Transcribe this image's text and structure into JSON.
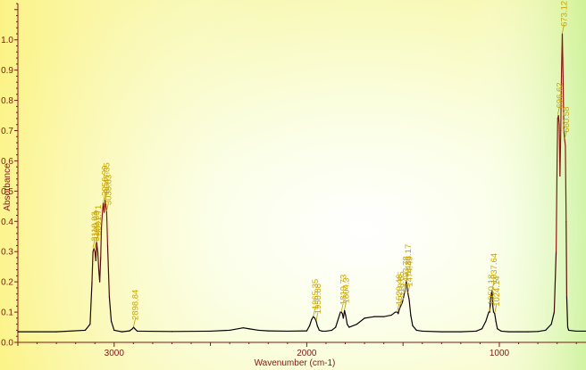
{
  "chart_data": {
    "type": "line",
    "title": "",
    "xlabel": "Wavenumber (cm-1)",
    "ylabel": "Absorbance",
    "xlim": [
      3500,
      550
    ],
    "ylim": [
      0,
      1.12
    ],
    "x_reversed": true,
    "grid": false,
    "x_ticks": [
      3000,
      2000,
      1000
    ],
    "y_ticks": [
      0.0,
      0.1,
      0.2,
      0.3,
      0.4,
      0.5,
      0.6,
      0.7,
      0.8,
      0.9,
      1.0
    ],
    "y_tick_labels": [
      "0.0",
      "0.1",
      "0.2",
      "0.3",
      "0.4",
      "0.5",
      "0.6",
      "0.7",
      "0.8",
      "0.9",
      "1.0"
    ],
    "series": [
      {
        "line_color": "#8b1a10",
        "x": [
          3500,
          3300,
          3150,
          3125,
          3115,
          3110,
          3105,
          3100,
          3095,
          3091,
          3085,
          3080,
          3075,
          3070,
          3066,
          3062,
          3057,
          3052,
          3047,
          3043,
          3039,
          3034,
          3025,
          3015,
          3000,
          2960,
          2920,
          2905,
          2899,
          2893,
          2880,
          2700,
          2500,
          2400,
          2330,
          2300,
          2250,
          2200,
          2100,
          2000,
          1985,
          1975,
          1966,
          1958,
          1951,
          1945,
          1935,
          1920,
          1900,
          1870,
          1850,
          1835,
          1825,
          1820,
          1815,
          1810,
          1804,
          1798,
          1790,
          1780,
          1740,
          1700,
          1650,
          1600,
          1560,
          1540,
          1530,
          1525,
          1519,
          1512,
          1505,
          1500,
          1494,
          1490,
          1486,
          1483,
          1480,
          1477,
          1474,
          1468,
          1460,
          1450,
          1430,
          1400,
          1300,
          1200,
          1120,
          1090,
          1070,
          1060,
          1055,
          1050,
          1046,
          1042,
          1038,
          1034,
          1030,
          1024,
          1018,
          1010,
          990,
          950,
          900,
          850,
          800,
          760,
          730,
          715,
          705,
          700,
          697,
          693,
          689,
          685,
          681,
          677,
          673,
          669,
          665,
          661,
          657,
          653,
          650,
          645,
          640,
          600,
          550
        ],
        "y": [
          0.035,
          0.035,
          0.04,
          0.06,
          0.2,
          0.3,
          0.31,
          0.3,
          0.27,
          0.33,
          0.3,
          0.24,
          0.2,
          0.28,
          0.38,
          0.42,
          0.46,
          0.43,
          0.47,
          0.45,
          0.43,
          0.32,
          0.15,
          0.07,
          0.04,
          0.035,
          0.038,
          0.045,
          0.05,
          0.045,
          0.037,
          0.036,
          0.037,
          0.04,
          0.048,
          0.045,
          0.04,
          0.038,
          0.037,
          0.038,
          0.055,
          0.075,
          0.085,
          0.08,
          0.07,
          0.055,
          0.04,
          0.037,
          0.037,
          0.04,
          0.05,
          0.08,
          0.1,
          0.1,
          0.095,
          0.08,
          0.105,
          0.09,
          0.06,
          0.05,
          0.06,
          0.08,
          0.085,
          0.085,
          0.09,
          0.1,
          0.1,
          0.095,
          0.11,
          0.12,
          0.13,
          0.14,
          0.16,
          0.17,
          0.19,
          0.2,
          0.19,
          0.17,
          0.16,
          0.14,
          0.09,
          0.055,
          0.04,
          0.037,
          0.035,
          0.035,
          0.037,
          0.045,
          0.07,
          0.09,
          0.1,
          0.1,
          0.14,
          0.16,
          0.17,
          0.12,
          0.1,
          0.095,
          0.07,
          0.045,
          0.037,
          0.035,
          0.035,
          0.035,
          0.036,
          0.04,
          0.06,
          0.1,
          0.3,
          0.6,
          0.74,
          0.75,
          0.72,
          0.55,
          0.7,
          0.9,
          1.02,
          0.88,
          0.7,
          0.67,
          0.65,
          0.4,
          0.15,
          0.05,
          0.04,
          0.037,
          0.037
        ]
      }
    ],
    "peak_labels": [
      {
        "x": 3110.03,
        "y": 0.31,
        "text": "3110.03"
      },
      {
        "x": 3100.39,
        "y": 0.31,
        "text": "3100.39"
      },
      {
        "x": 3091.71,
        "y": 0.33,
        "text": "3091.71"
      },
      {
        "x": 3056.99,
        "y": 0.46,
        "text": "3056.99"
      },
      {
        "x": 3047.35,
        "y": 0.47,
        "text": "3047.35"
      },
      {
        "x": 3039.63,
        "y": 0.43,
        "text": "3039.63"
      },
      {
        "x": 2898.84,
        "y": 0.05,
        "text": "2898.84"
      },
      {
        "x": 1965.35,
        "y": 0.085,
        "text": "1965.35"
      },
      {
        "x": 1950.88,
        "y": 0.07,
        "text": "1950.88"
      },
      {
        "x": 1819.73,
        "y": 0.1,
        "text": "1819.73"
      },
      {
        "x": 1804.3,
        "y": 0.105,
        "text": "1804.3"
      },
      {
        "x": 1529.46,
        "y": 0.1,
        "text": "1529.46"
      },
      {
        "x": 1518.85,
        "y": 0.11,
        "text": "1518.85"
      },
      {
        "x": 1493.78,
        "y": 0.16,
        "text": "1493.78"
      },
      {
        "x": 1483.17,
        "y": 0.2,
        "text": "1483.17"
      },
      {
        "x": 1474.49,
        "y": 0.16,
        "text": "1474.49"
      },
      {
        "x": 1050.18,
        "y": 0.1,
        "text": "1050.18"
      },
      {
        "x": 1037.64,
        "y": 0.17,
        "text": "1037.64"
      },
      {
        "x": 1024.14,
        "y": 0.095,
        "text": "1024.14"
      },
      {
        "x": 696.62,
        "y": 0.75,
        "text": "696.62"
      },
      {
        "x": 673.12,
        "y": 1.02,
        "text": "673.12"
      },
      {
        "x": 660.58,
        "y": 0.67,
        "text": "660.58"
      }
    ],
    "colors": {
      "background_left": "#fff59a",
      "background_center": "#ffffff",
      "background_right": "#c6f2a0",
      "axis": "#7a1a12",
      "label_text": "#c9a400",
      "leader_line": "#b8a000",
      "spectrum_low": "#000000",
      "spectrum_high": "#8b1a10"
    }
  }
}
